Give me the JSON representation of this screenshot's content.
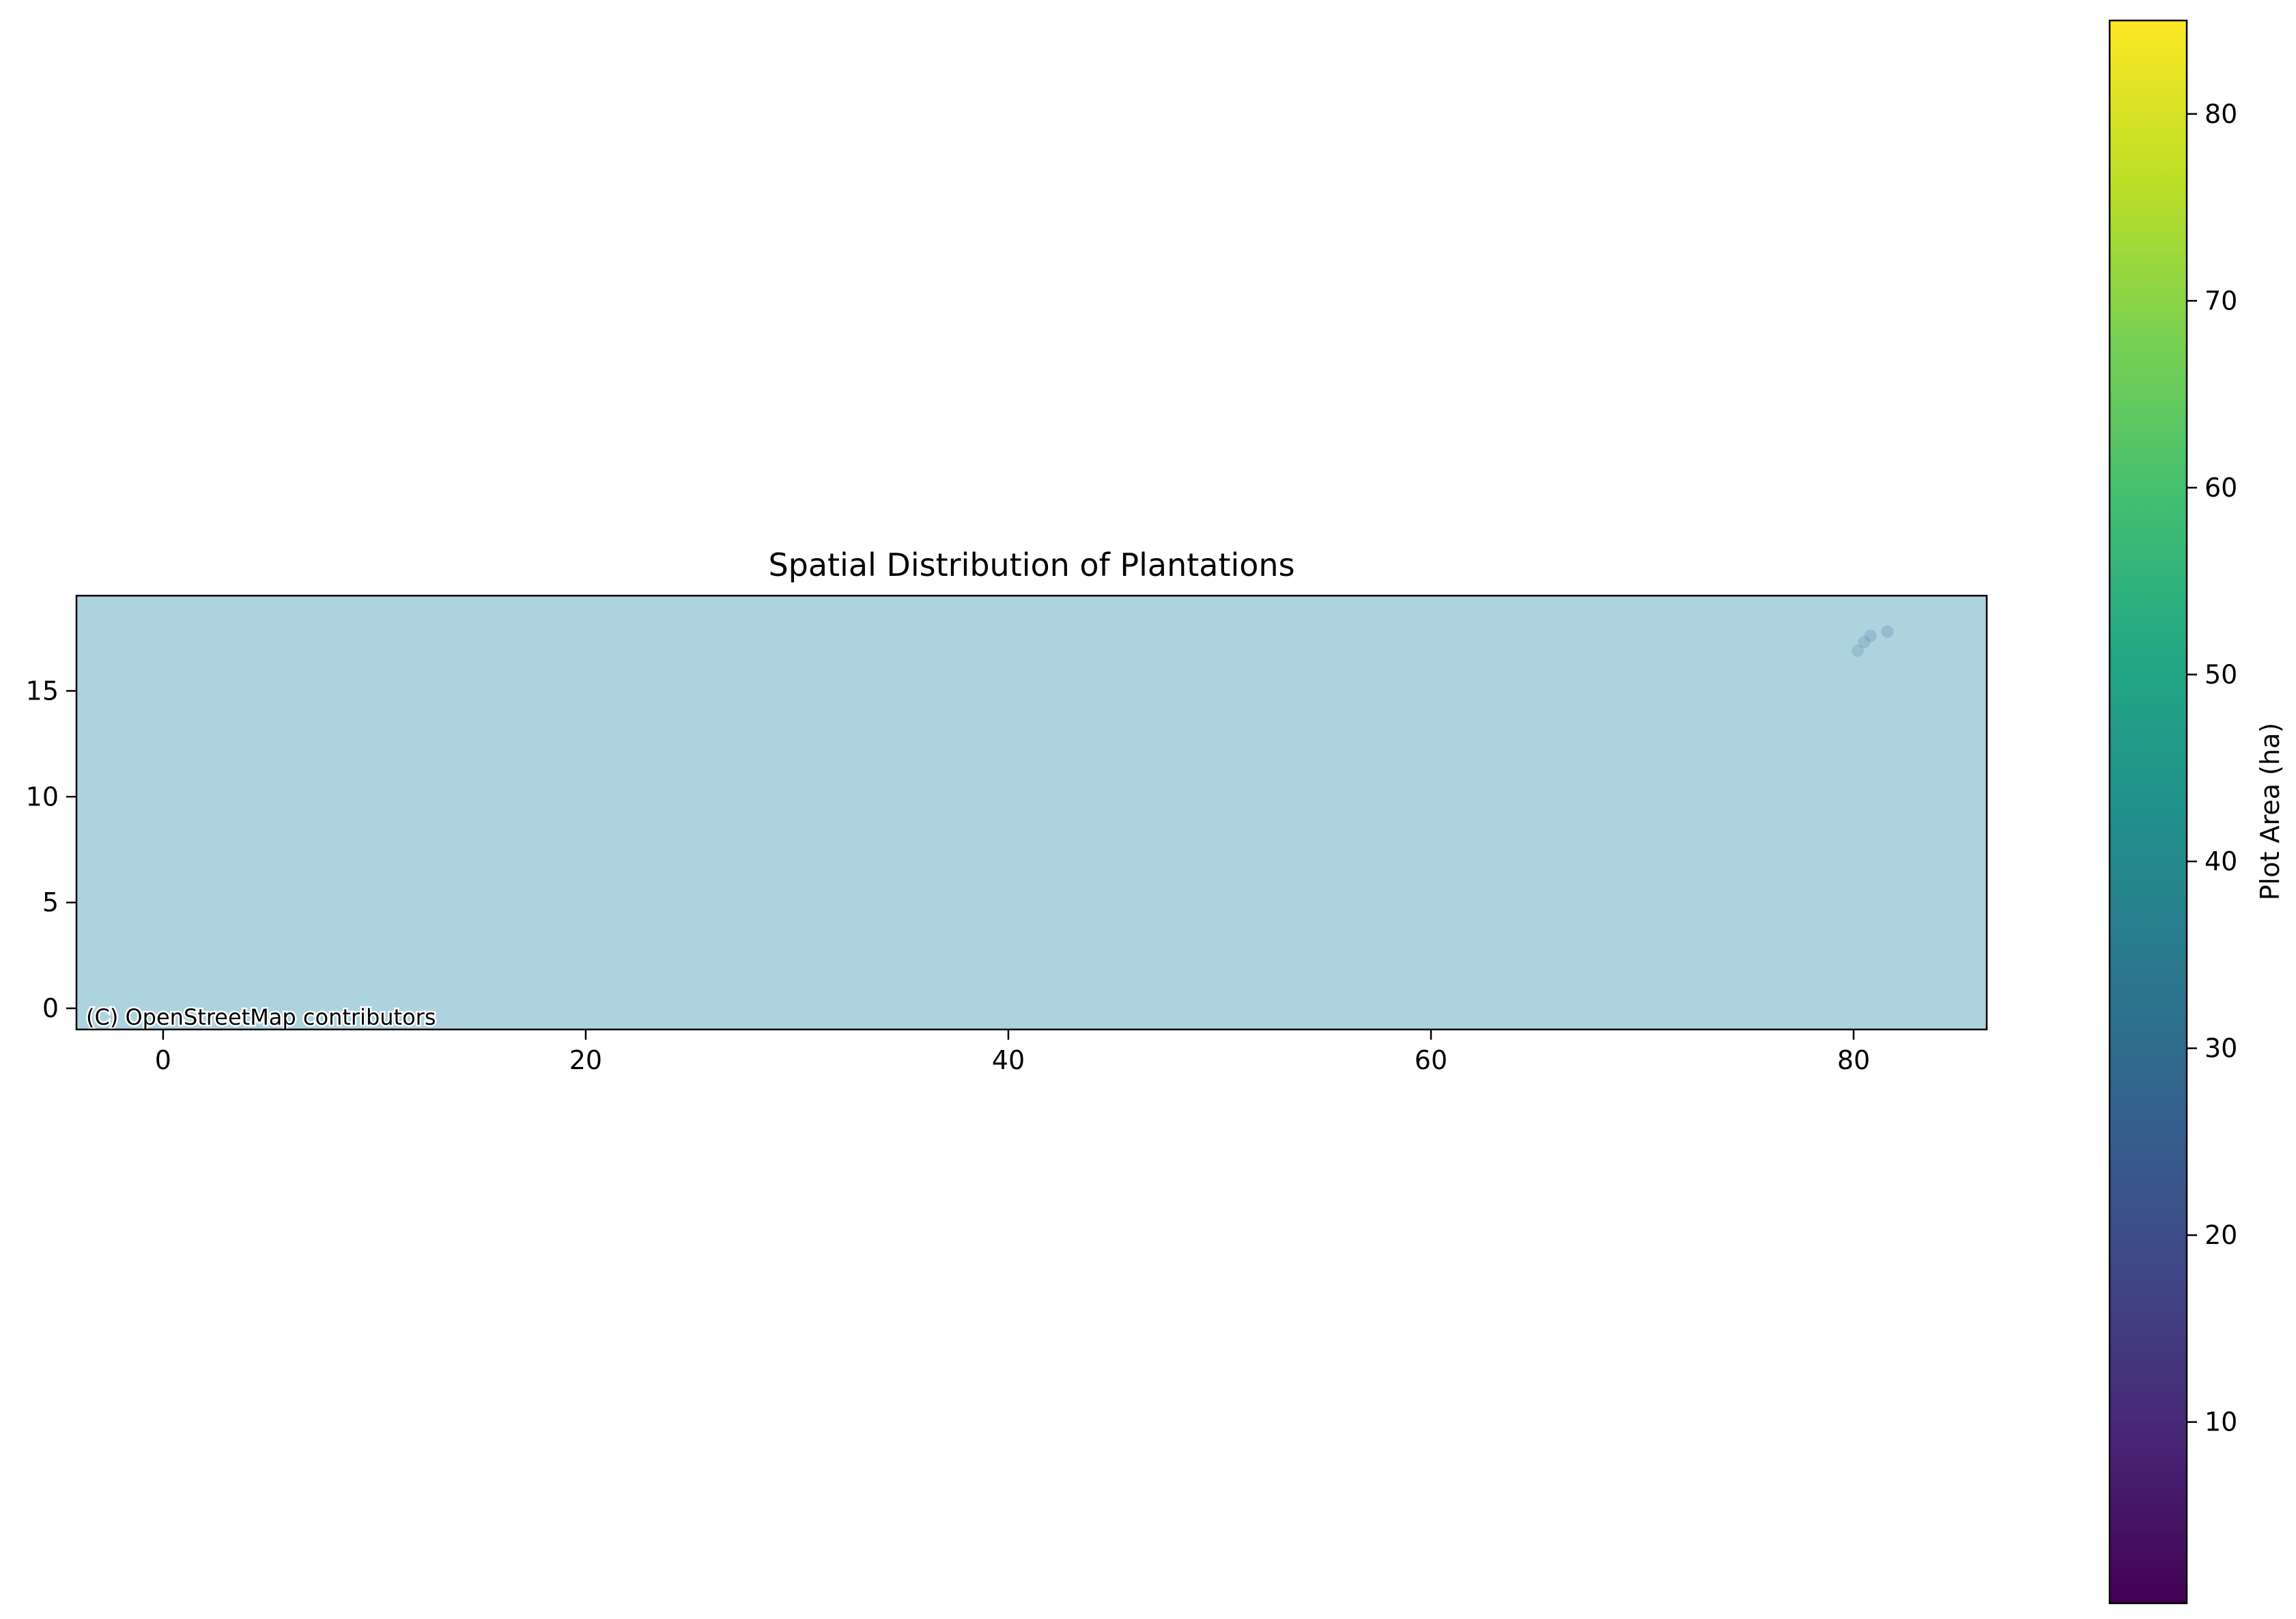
{
  "chart_data": {
    "type": "scatter",
    "title": "Spatial Distribution of Plantations",
    "xlabel": "",
    "ylabel": "",
    "xlim": [
      -4.1,
      86.3
    ],
    "ylim": [
      -1.0,
      19.5
    ],
    "x_ticks": [
      0,
      20,
      40,
      60,
      80
    ],
    "y_ticks": [
      0,
      5,
      10,
      15
    ],
    "grid": false,
    "background_color": "#add3df",
    "basemap_attribution": "(C) OpenStreetMap contributors",
    "points": [
      {
        "x": 80.2,
        "y": 16.9,
        "area": 28
      },
      {
        "x": 80.8,
        "y": 17.6,
        "area": 22
      },
      {
        "x": 81.6,
        "y": 17.8,
        "area": 18
      },
      {
        "x": 80.5,
        "y": 17.3,
        "area": 25
      }
    ],
    "colorbar": {
      "label": "Plot Area (ha)",
      "colormap": "viridis",
      "range": [
        0.3,
        85
      ],
      "ticks": [
        10,
        20,
        30,
        40,
        50,
        60,
        70,
        80
      ]
    }
  }
}
